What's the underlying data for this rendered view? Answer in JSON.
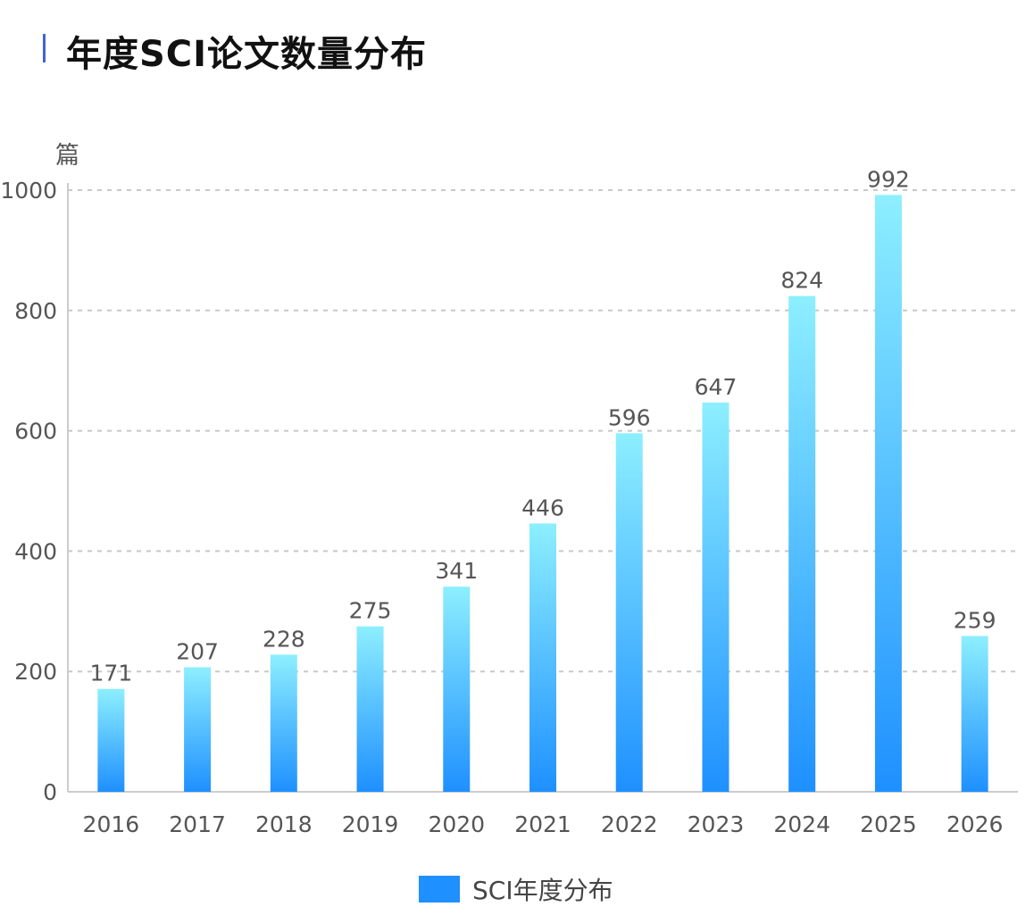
{
  "chart_data": {
    "type": "bar",
    "title": "年度SCI论文数量分布",
    "ylabel": "篇",
    "xlabel": "",
    "categories": [
      "2016",
      "2017",
      "2018",
      "2019",
      "2020",
      "2021",
      "2022",
      "2023",
      "2024",
      "2025",
      "2026"
    ],
    "series": [
      {
        "name": "SCI年度分布",
        "values": [
          171,
          207,
          228,
          275,
          341,
          446,
          596,
          647,
          824,
          992,
          259
        ]
      }
    ],
    "ylim": [
      0,
      1000
    ],
    "yticks": [
      "0",
      "200",
      "400",
      "600",
      "800",
      "1000"
    ],
    "grid": true,
    "legend": "bottom-center",
    "colors": {
      "bar_top": "#8defff",
      "bar_bottom": "#1e90ff",
      "legend": "#1e90ff",
      "title_accent": "#3f63d8"
    }
  }
}
